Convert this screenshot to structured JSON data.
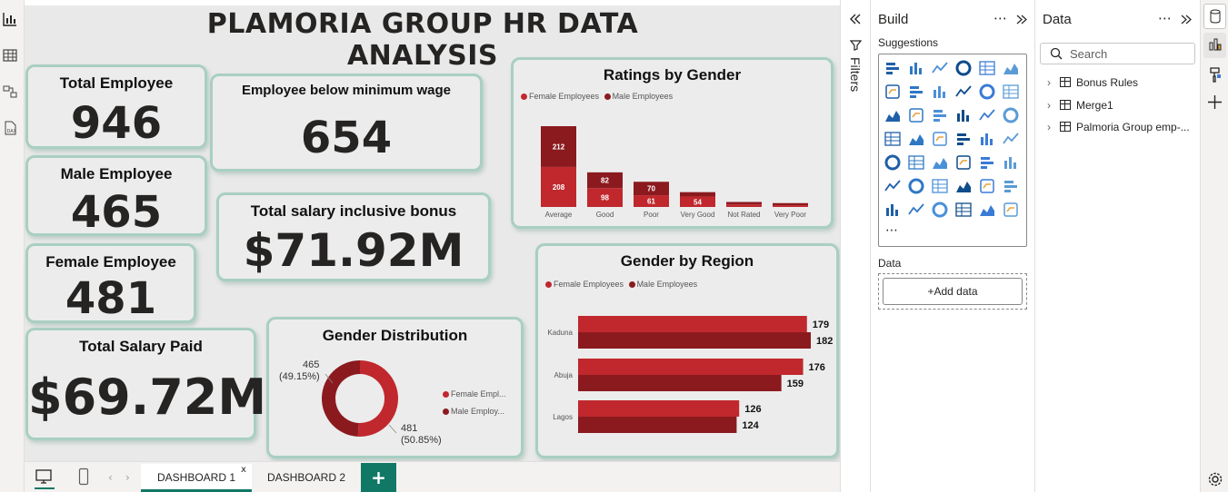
{
  "report": {
    "title": "PLAMORIA GROUP HR DATA ANALYSIS"
  },
  "kpis": {
    "total_employee": {
      "label": "Total Employee",
      "value": "946"
    },
    "male_employee": {
      "label": "Male Employee",
      "value": "465"
    },
    "female_employee": {
      "label": "Female Employee",
      "value": "481"
    },
    "total_salary_paid": {
      "label": "Total Salary Paid",
      "value": "$69.72M"
    },
    "below_min_wage": {
      "label": "Employee below minimum wage",
      "value": "654"
    },
    "salary_incl_bonus": {
      "label": "Total salary inclusive bonus",
      "value": "$71.92M"
    }
  },
  "colors": {
    "female": "#c0282d",
    "male": "#8b1a1f",
    "accent": "#117865",
    "card_border": "#a9cfc2"
  },
  "legend": {
    "female": "Female Employees",
    "male": "Male Employees",
    "female_short": "Female Empl...",
    "male_short": "Male Employ..."
  },
  "chart_data": [
    {
      "type": "bar",
      "title": "Ratings by Gender",
      "stacked": true,
      "categories": [
        "Average",
        "Good",
        "Poor",
        "Very Good",
        "Not Rated",
        "Very Poor"
      ],
      "series": [
        {
          "name": "Female Employees",
          "values": [
            208,
            98,
            61,
            54,
            13,
            9
          ],
          "labels": [
            "208",
            "98",
            "61",
            "54",
            "",
            ""
          ]
        },
        {
          "name": "Male Employees",
          "values": [
            212,
            82,
            70,
            23,
            13,
            11
          ],
          "labels": [
            "212",
            "82",
            "70",
            "",
            "",
            ""
          ]
        }
      ],
      "ylim": [
        0,
        440
      ],
      "legend": "top-left",
      "grid": false
    },
    {
      "type": "bar",
      "orientation": "horizontal",
      "title": "Gender by Region",
      "categories": [
        "Kaduna",
        "Abuja",
        "Lagos"
      ],
      "series": [
        {
          "name": "Female Employees",
          "values": [
            179,
            176,
            126
          ]
        },
        {
          "name": "Male Employees",
          "values": [
            182,
            159,
            124
          ]
        }
      ],
      "xlim": [
        0,
        190
      ],
      "legend": "top-left",
      "grid": false
    },
    {
      "type": "pie",
      "donut": true,
      "title": "Gender Distribution",
      "slices": [
        {
          "name": "Female Employees",
          "value": 481,
          "label": "481",
          "pct": "(50.85%)"
        },
        {
          "name": "Male Employees",
          "value": 465,
          "label": "465",
          "pct": "(49.15%)"
        }
      ],
      "legend": "right"
    }
  ],
  "filters": {
    "label": "Filters"
  },
  "build_pane": {
    "title": "Build",
    "suggestions_label": "Suggestions",
    "data_label": "Data",
    "add_data": "+Add data",
    "more": "⋯",
    "visual_icons": [
      "stacked-bar-icon",
      "stacked-column-icon",
      "clustered-bar-icon",
      "clustered-column-icon",
      "100-stacked-bar-icon",
      "100-stacked-column-icon",
      "line-chart-icon",
      "area-chart-icon",
      "stacked-area-icon",
      "ribbon-chart-icon",
      "line-stacked-column-icon",
      "line-clustered-column-icon",
      "line-column-combo-icon",
      "waterfall-icon",
      "funnel-icon",
      "scatter-icon",
      "pie-icon",
      "donut-icon",
      "treemap-icon",
      "map-icon",
      "filled-map-icon",
      "azure-map-icon",
      "gauge-icon",
      "card-icon",
      "multirow-card-icon",
      "kpi-icon",
      "slicer-icon",
      "table-icon",
      "matrix-icon",
      "r-visual-icon",
      "python-visual-icon",
      "key-influencers-icon",
      "decomposition-tree-icon",
      "qa-icon",
      "smart-narrative-icon",
      "metrics-icon",
      "paginated-report-icon",
      "power-apps-icon",
      "power-automate-icon",
      "more-visuals-icon",
      "diamond-visual-icon",
      "chevron-visual-icon"
    ]
  },
  "data_pane": {
    "title": "Data",
    "search_placeholder": "Search",
    "tables": [
      "Bonus Rules",
      "Merge1",
      "Palmoria Group emp-..."
    ]
  },
  "pages": {
    "tabs": [
      "DASHBOARD 1",
      "DASHBOARD 2"
    ],
    "add": "+",
    "close": "x"
  }
}
